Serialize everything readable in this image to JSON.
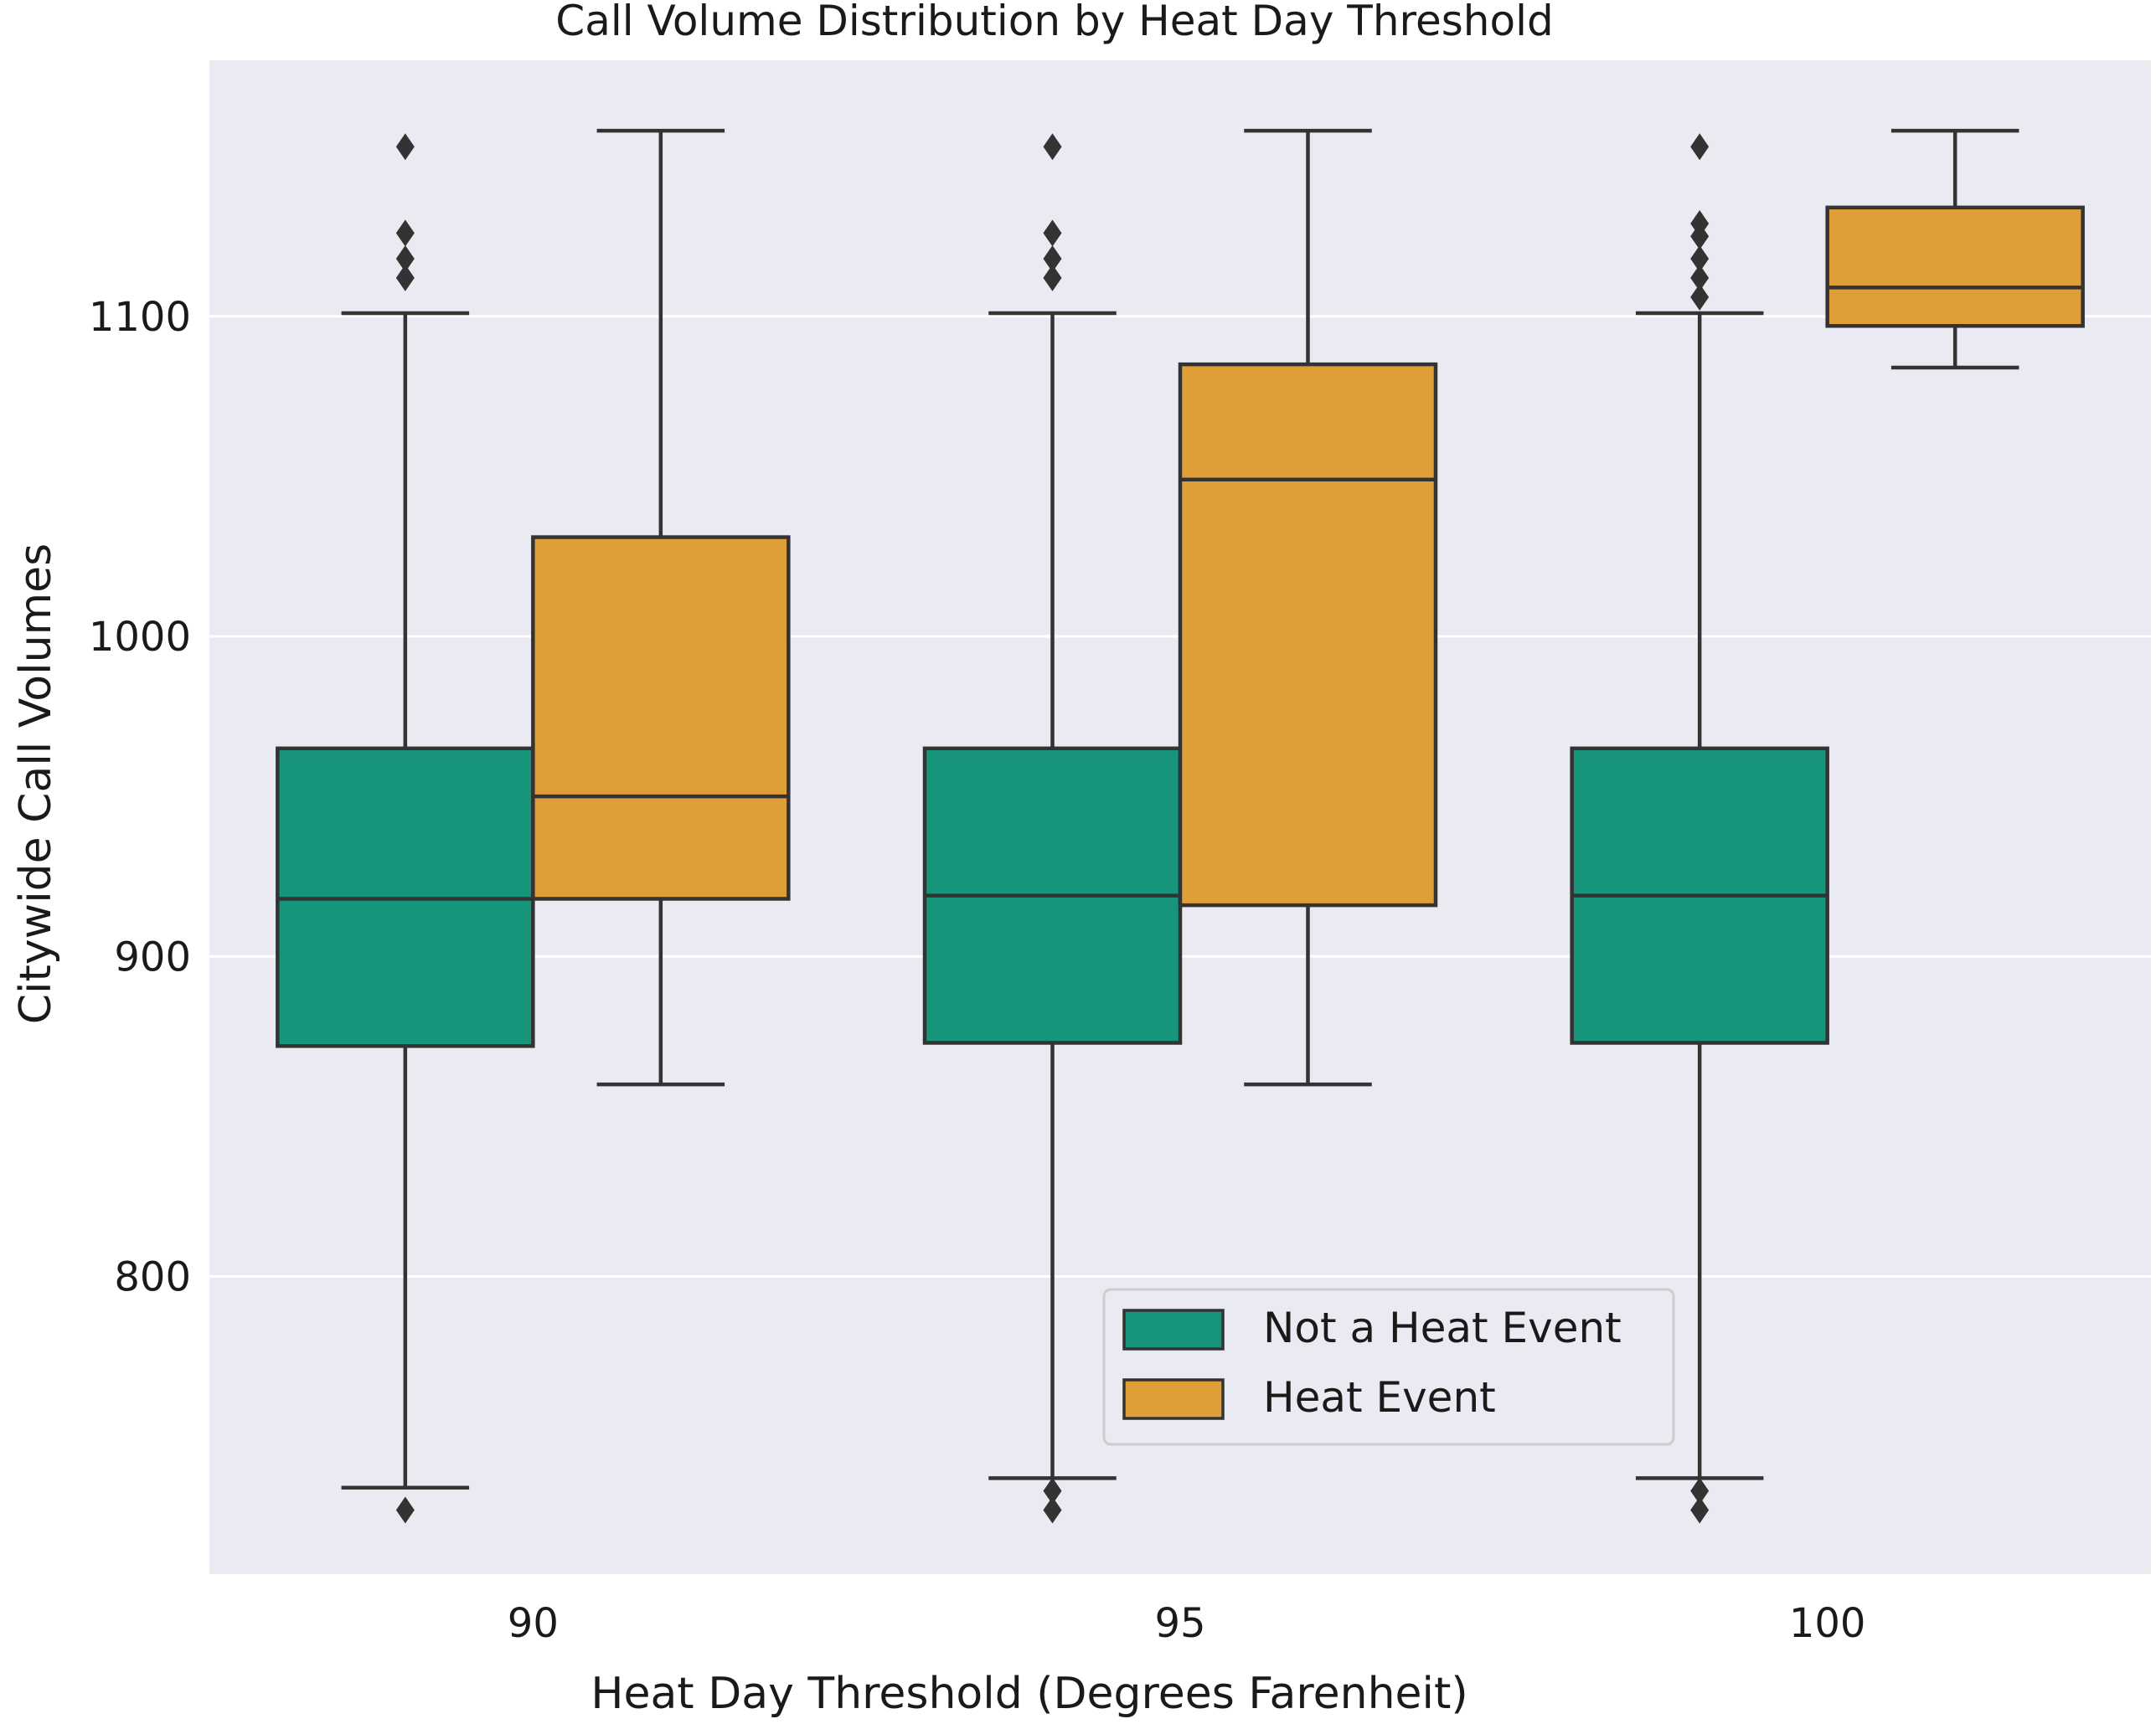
{
  "chart_data": {
    "type": "box",
    "title": "Call Volume Distribution by Heat Day Threshold",
    "xlabel": "Heat Day Threshold (Degrees Farenheit)",
    "ylabel": "Citywide Call Volumes",
    "categories": [
      "90",
      "95",
      "100"
    ],
    "ylim": [
      707,
      1180
    ],
    "yticks": [
      800,
      900,
      1000,
      1100
    ],
    "grid": true,
    "legend_position": "lower-center",
    "series": [
      {
        "name": "Not a Heat Event",
        "color": "#17957a",
        "boxes": [
          {
            "whislo": 734,
            "q1": 872,
            "med": 918,
            "q3": 965,
            "whishi": 1101,
            "fliers": [
              727,
              1112,
              1118,
              1126,
              1153
            ]
          },
          {
            "whislo": 737,
            "q1": 873,
            "med": 919,
            "q3": 965,
            "whishi": 1101,
            "fliers": [
              727,
              733,
              1112,
              1118,
              1126,
              1153
            ]
          },
          {
            "whislo": 737,
            "q1": 873,
            "med": 919,
            "q3": 965,
            "whishi": 1101,
            "fliers": [
              727,
              733,
              1106,
              1112,
              1118,
              1125,
              1129,
              1153
            ]
          }
        ]
      },
      {
        "name": "Heat Event",
        "color": "#df9e37",
        "boxes": [
          {
            "whislo": 860,
            "q1": 918,
            "med": 950,
            "q3": 1031,
            "whishi": 1158,
            "fliers": []
          },
          {
            "whislo": 860,
            "q1": 916,
            "med": 1049,
            "q3": 1085,
            "whishi": 1158,
            "fliers": []
          },
          {
            "whislo": 1084,
            "q1": 1097,
            "med": 1109,
            "q3": 1134,
            "whishi": 1158,
            "fliers": []
          }
        ]
      }
    ]
  }
}
